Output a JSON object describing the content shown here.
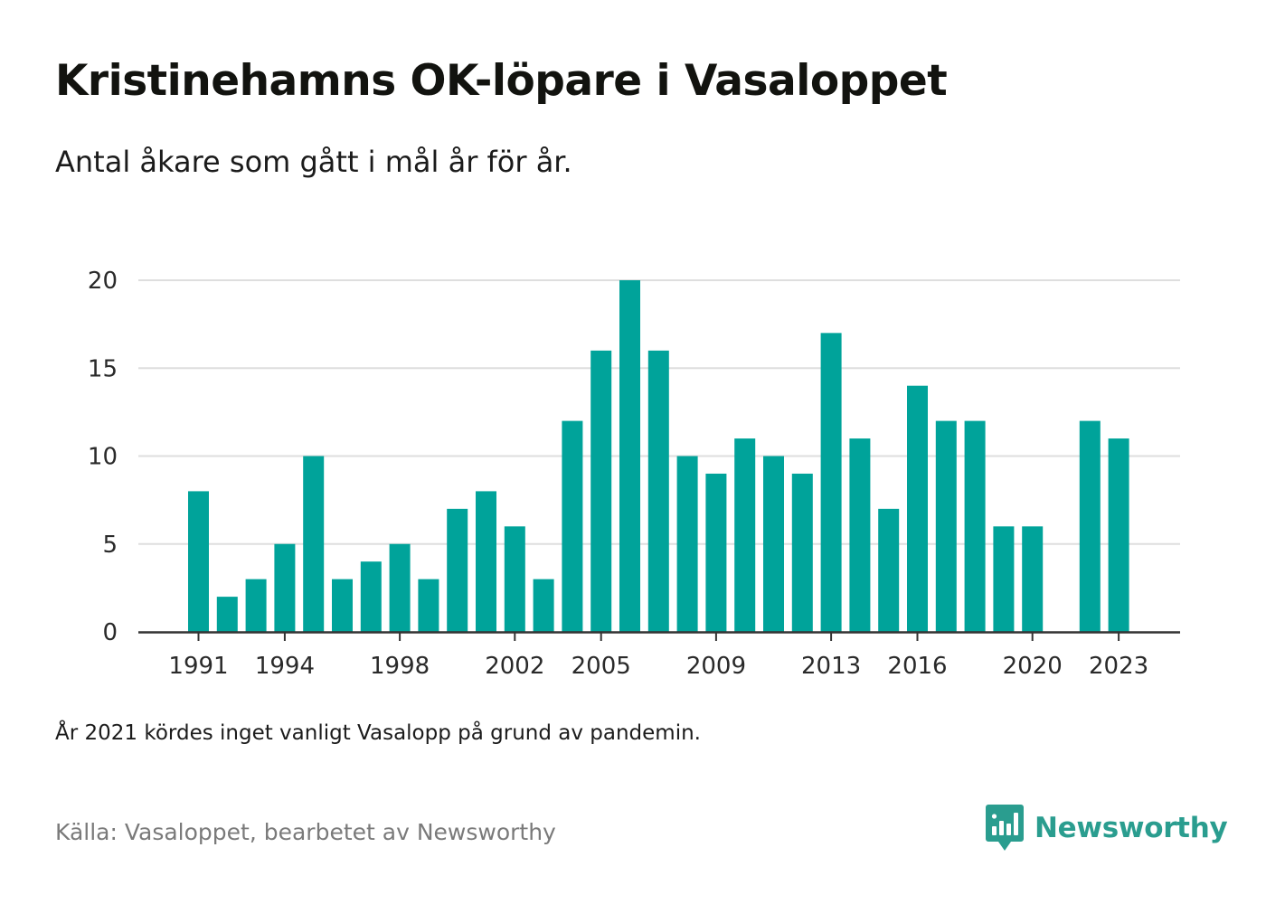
{
  "header": {
    "title": "Kristinehamns OK-löpare i Vasaloppet",
    "subtitle": "Antal åkare som gått i mål år för år."
  },
  "chart_data": {
    "type": "bar",
    "title": "Kristinehamns OK-löpare i Vasaloppet",
    "subtitle": "Antal åkare som gått i mål år för år.",
    "xlabel": "",
    "ylabel": "",
    "categories": [
      1991,
      1992,
      1993,
      1994,
      1995,
      1996,
      1997,
      1998,
      1999,
      2000,
      2001,
      2002,
      2003,
      2004,
      2005,
      2006,
      2007,
      2008,
      2009,
      2010,
      2011,
      2012,
      2013,
      2014,
      2015,
      2016,
      2017,
      2018,
      2019,
      2020,
      2021,
      2022,
      2023
    ],
    "values": [
      8,
      2,
      3,
      5,
      10,
      3,
      4,
      5,
      3,
      7,
      8,
      6,
      3,
      12,
      16,
      20,
      16,
      10,
      9,
      11,
      10,
      9,
      17,
      11,
      7,
      14,
      12,
      12,
      6,
      6,
      null,
      12,
      11
    ],
    "x_tick_labels": [
      "1991",
      "1994",
      "1998",
      "2002",
      "2005",
      "2009",
      "2013",
      "2016",
      "2020",
      "2023"
    ],
    "y_ticks": [
      0,
      5,
      10,
      15,
      20
    ],
    "ylim": [
      0,
      20
    ],
    "grid": true,
    "legend": "none",
    "bar_color": "#00a39a",
    "grid_color": "#dedede",
    "axis_color": "#333333"
  },
  "footer": {
    "note": "År 2021 kördes inget vanligt Vasalopp på grund av pandemin.",
    "source": "Källa: Vasaloppet, bearbetet av Newsworthy",
    "brand_name": "Newsworthy",
    "brand_icon": "newsworthy-logo-icon",
    "brand_color": "#2a9d8f"
  }
}
